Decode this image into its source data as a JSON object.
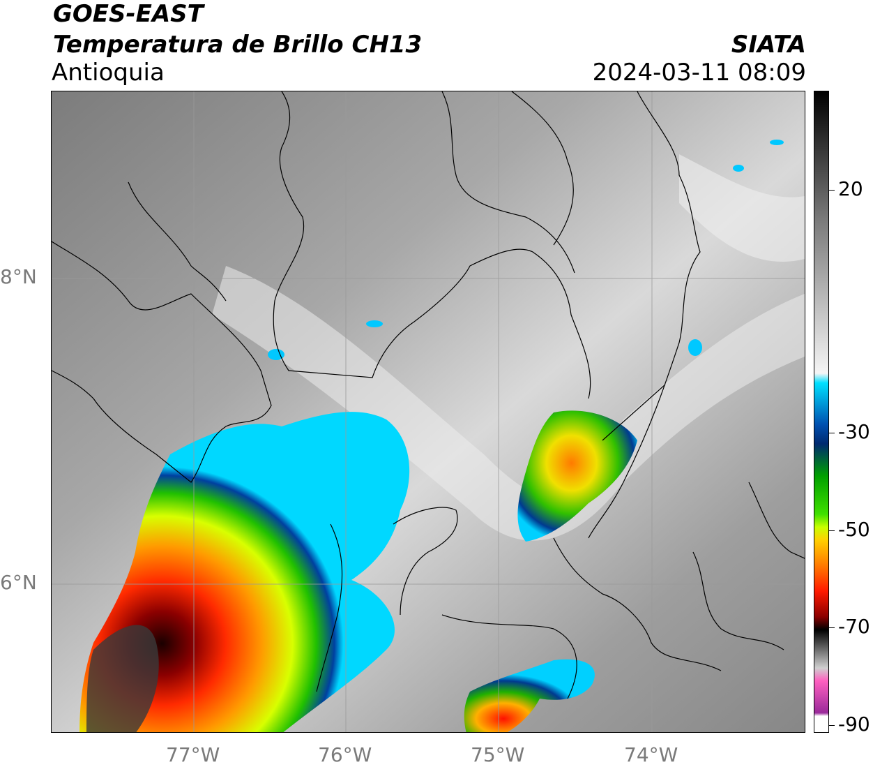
{
  "header": {
    "satellite": "GOES-EAST",
    "product": "Temperatura de Brillo CH13",
    "region": "Antioquia",
    "brand": "SIATA",
    "datetime": "2024-03-11 08:09"
  },
  "axes": {
    "lat_labels": [
      "8°N",
      "6°N"
    ],
    "lon_labels": [
      "77°W",
      "76°W",
      "75°W",
      "74°W"
    ]
  },
  "colorbar": {
    "labels": [
      "20",
      "-30",
      "-50",
      "-70",
      "-90"
    ]
  },
  "colors": {
    "frame": "#000000",
    "grid": "#9a9a9a",
    "axis_label": "#7a7a7a"
  }
}
